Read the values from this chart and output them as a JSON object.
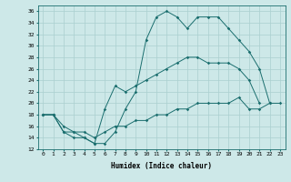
{
  "xlabel": "Humidex (Indice chaleur)",
  "bg_color": "#cde8e8",
  "grid_color": "#aacfcf",
  "line_color": "#1a6e6e",
  "xlim": [
    -0.5,
    23.5
  ],
  "ylim": [
    12,
    37
  ],
  "yticks": [
    12,
    14,
    16,
    18,
    20,
    22,
    24,
    26,
    28,
    30,
    32,
    34,
    36
  ],
  "xticks": [
    0,
    1,
    2,
    3,
    4,
    5,
    6,
    7,
    8,
    9,
    10,
    11,
    12,
    13,
    14,
    15,
    16,
    17,
    18,
    19,
    20,
    21,
    22,
    23
  ],
  "line1_x": [
    0,
    1,
    2,
    3,
    4,
    5,
    6,
    7,
    8,
    9,
    10,
    11,
    12,
    13,
    14,
    15,
    16,
    17,
    18,
    19,
    20,
    21,
    22,
    23
  ],
  "line1_y": [
    18,
    18,
    15,
    15,
    14,
    13,
    13,
    15,
    19,
    22,
    31,
    35,
    36,
    35,
    33,
    35,
    35,
    35,
    33,
    31,
    29,
    26,
    20,
    20
  ],
  "line2_x": [
    0,
    1,
    2,
    3,
    4,
    5,
    6,
    7,
    8,
    9,
    10,
    11,
    12,
    13,
    14,
    15,
    16,
    17,
    18,
    19,
    20,
    21
  ],
  "line2_y": [
    18,
    18,
    15,
    14,
    14,
    13,
    19,
    23,
    22,
    23,
    24,
    25,
    26,
    27,
    28,
    28,
    27,
    27,
    27,
    26,
    24,
    20
  ],
  "line3_x": [
    0,
    1,
    2,
    3,
    4,
    5,
    6,
    7,
    8,
    9,
    10,
    11,
    12,
    13,
    14,
    15,
    16,
    17,
    18,
    19,
    20,
    21,
    22
  ],
  "line3_y": [
    18,
    18,
    16,
    15,
    15,
    14,
    15,
    16,
    16,
    17,
    17,
    18,
    18,
    19,
    19,
    20,
    20,
    20,
    20,
    21,
    19,
    19,
    20
  ]
}
